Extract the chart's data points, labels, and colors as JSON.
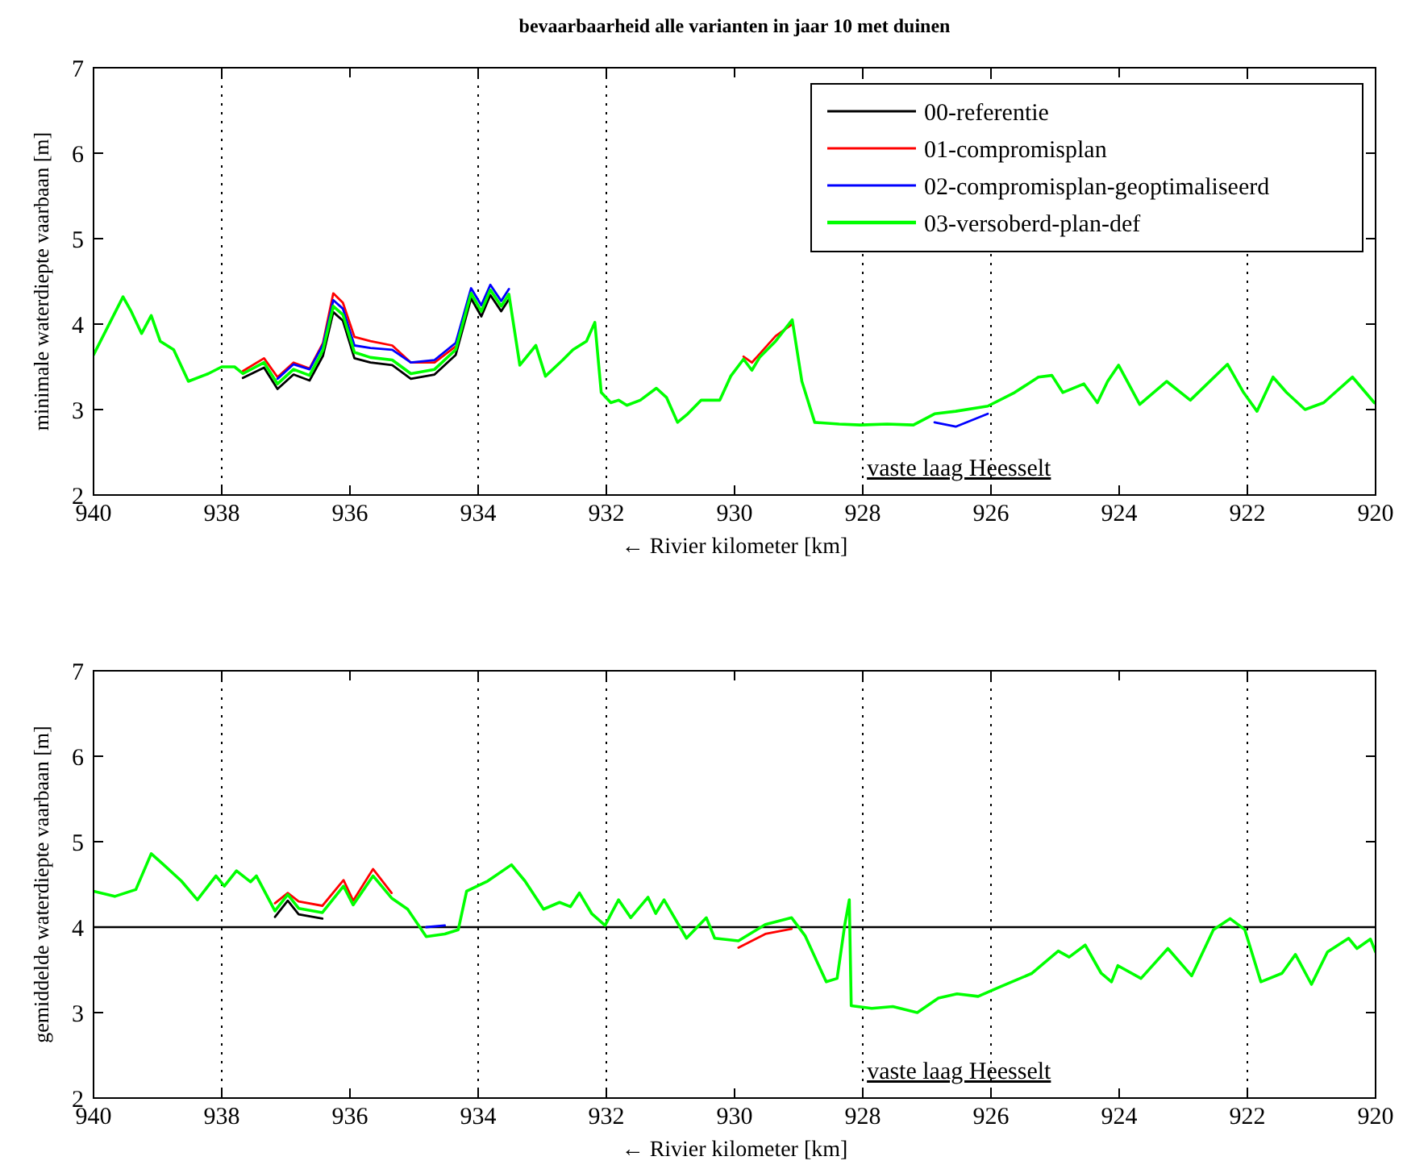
{
  "chart_data": [
    {
      "type": "line",
      "title": "bevaarbaarheid alle varianten in jaar 10 met duinen",
      "xlabel": "← Rivier kilometer [km]",
      "ylabel": "minimale waterdiepte vaarbaan [m]",
      "xlim": [
        940,
        920
      ],
      "ylim": [
        2,
        7
      ],
      "xticks": [
        940,
        938,
        936,
        934,
        932,
        930,
        928,
        926,
        924,
        922,
        920
      ],
      "yticks": [
        2,
        3,
        4,
        5,
        6,
        7
      ],
      "legend": "top right",
      "x": [
        940,
        939.54,
        939.42,
        939.25,
        939.1,
        938.96,
        938.75,
        938.52,
        938.21,
        938,
        937.8,
        937.67,
        937.34,
        937.13,
        936.88,
        936.63,
        936.42,
        936.26,
        936.11,
        935.93,
        935.68,
        935.34,
        935.05,
        934.68,
        934.35,
        934.11,
        933.95,
        933.81,
        933.64,
        933.52,
        933.35,
        933.1,
        932.95,
        932.68,
        932.52,
        932.31,
        932.18,
        932.08,
        931.93,
        931.81,
        931.68,
        931.47,
        931.22,
        931.06,
        930.89,
        930.73,
        930.52,
        930.23,
        930.06,
        929.86,
        929.73,
        929.61,
        929.36,
        929.1,
        928.95,
        928.75,
        928.37,
        928.04,
        927.62,
        927.21,
        926.88,
        926.55,
        926.05,
        925.63,
        925.26,
        925.05,
        924.88,
        924.55,
        924.34,
        924.18,
        924.01,
        923.68,
        923.26,
        922.89,
        922.31,
        922.06,
        921.85,
        921.6,
        921.39,
        921.1,
        920.81,
        920.36,
        920.02
      ],
      "series": [
        {
          "name": "00-referentie",
          "color": "#000000",
          "values": [
            null,
            null,
            null,
            null,
            null,
            null,
            null,
            null,
            null,
            null,
            null,
            3.37,
            3.49,
            3.24,
            3.41,
            3.34,
            3.63,
            4.14,
            4.04,
            3.6,
            3.55,
            3.52,
            3.36,
            3.41,
            3.64,
            4.3,
            4.09,
            4.34,
            4.15,
            4.29,
            null,
            null,
            null,
            null,
            null,
            null,
            null,
            null,
            null,
            null,
            null,
            null,
            null,
            null,
            null,
            null,
            null,
            null,
            null,
            null,
            null,
            null,
            null,
            null,
            null,
            null,
            null,
            null,
            null,
            null,
            null,
            null,
            null,
            null,
            null,
            null,
            null,
            null,
            null,
            null,
            null,
            null,
            null,
            null,
            null,
            null,
            null,
            null,
            null,
            null,
            null,
            null,
            null
          ]
        },
        {
          "name": "01-compromisplan",
          "color": "#ff0000",
          "values": [
            null,
            null,
            null,
            null,
            null,
            null,
            null,
            null,
            null,
            null,
            null,
            3.45,
            3.6,
            3.38,
            3.55,
            3.48,
            3.78,
            4.36,
            4.25,
            3.85,
            3.8,
            3.75,
            3.55,
            3.55,
            3.74,
            null,
            null,
            null,
            null,
            null,
            null,
            null,
            null,
            null,
            null,
            null,
            null,
            null,
            null,
            null,
            null,
            null,
            null,
            null,
            null,
            null,
            null,
            null,
            null,
            3.62,
            3.55,
            3.65,
            3.86,
            4.0,
            null,
            null,
            null,
            null,
            null,
            null,
            null,
            null,
            null,
            null,
            null,
            null,
            null,
            null,
            null,
            null,
            null,
            null,
            null,
            null,
            null,
            null,
            null,
            null,
            null,
            null,
            null,
            null,
            null
          ]
        },
        {
          "name": "02-compromisplan-geoptimaliseerd",
          "color": "#0000ff",
          "values": [
            null,
            null,
            null,
            null,
            null,
            null,
            null,
            null,
            null,
            null,
            null,
            null,
            null,
            3.36,
            3.53,
            3.47,
            3.76,
            4.28,
            4.18,
            3.75,
            3.72,
            3.7,
            3.55,
            3.58,
            3.78,
            4.42,
            4.22,
            4.46,
            4.27,
            4.41,
            null,
            null,
            null,
            null,
            null,
            null,
            null,
            null,
            null,
            null,
            null,
            null,
            null,
            null,
            null,
            null,
            null,
            null,
            null,
            null,
            null,
            null,
            null,
            null,
            null,
            null,
            null,
            null,
            null,
            null,
            2.85,
            2.8,
            2.95,
            null,
            null,
            null,
            null,
            null,
            null,
            null,
            null,
            null,
            null,
            null,
            null,
            null,
            null,
            null,
            null,
            null,
            null,
            null,
            null
          ]
        },
        {
          "name": "03-versoberd-plan-def",
          "color": "#00ff00",
          "values": [
            3.64,
            4.32,
            4.16,
            3.89,
            4.1,
            3.8,
            3.7,
            3.33,
            3.42,
            3.5,
            3.5,
            3.42,
            3.55,
            3.3,
            3.47,
            3.4,
            3.7,
            4.21,
            4.11,
            3.67,
            3.61,
            3.58,
            3.42,
            3.47,
            3.7,
            4.36,
            4.15,
            4.4,
            4.21,
            4.35,
            3.52,
            3.75,
            3.39,
            3.58,
            3.7,
            3.8,
            4.02,
            3.2,
            3.08,
            3.11,
            3.05,
            3.11,
            3.25,
            3.14,
            2.85,
            2.95,
            3.11,
            3.11,
            3.39,
            3.59,
            3.46,
            3.61,
            3.8,
            4.05,
            3.33,
            2.85,
            2.83,
            2.82,
            2.83,
            2.82,
            2.95,
            2.98,
            3.04,
            3.2,
            3.38,
            3.4,
            3.2,
            3.3,
            3.08,
            3.33,
            3.52,
            3.06,
            3.33,
            3.11,
            3.53,
            3.2,
            2.98,
            3.38,
            3.2,
            3.0,
            3.08,
            3.38,
            3.08
          ]
        }
      ],
      "ref_lines": [
        {
          "axis": "x",
          "value": 938,
          "color": "#000000",
          "line_style": "dotted"
        },
        {
          "axis": "x",
          "value": 934,
          "color": "#000000",
          "line_style": "dotted"
        },
        {
          "axis": "x",
          "value": 932,
          "color": "#000000",
          "line_style": "dotted"
        },
        {
          "axis": "x",
          "value": 928,
          "color": "#000000",
          "line_style": "dotted"
        },
        {
          "axis": "x",
          "value": 926,
          "color": "#000000",
          "line_style": "dotted"
        },
        {
          "axis": "x",
          "value": 922,
          "color": "#000000",
          "line_style": "dotted"
        }
      ],
      "annotations": [
        "vaste laag Heesselt"
      ]
    },
    {
      "type": "line",
      "xlabel": "← Rivier kilometer [km]",
      "ylabel": "gemiddelde waterdiepte vaarbaan [m]",
      "xlim": [
        940,
        920
      ],
      "ylim": [
        2,
        7
      ],
      "xticks": [
        940,
        938,
        936,
        934,
        932,
        930,
        928,
        926,
        924,
        922,
        920
      ],
      "yticks": [
        2,
        3,
        4,
        5,
        6,
        7
      ],
      "x": [
        940,
        939.67,
        939.34,
        939.1,
        938.92,
        938.63,
        938.38,
        938.09,
        937.96,
        937.77,
        937.55,
        937.46,
        937.17,
        936.97,
        936.8,
        936.43,
        936.1,
        935.95,
        935.64,
        935.35,
        935.1,
        934.81,
        934.52,
        934.31,
        934.18,
        933.85,
        933.48,
        933.27,
        932.98,
        932.73,
        932.56,
        932.42,
        932.23,
        932.02,
        931.81,
        931.62,
        931.35,
        931.23,
        931.1,
        930.75,
        930.44,
        930.31,
        929.94,
        929.52,
        929.11,
        928.9,
        928.57,
        928.4,
        928.28,
        928.21,
        928.18,
        927.86,
        927.53,
        927.15,
        926.82,
        926.53,
        926.2,
        925.86,
        925.36,
        924.95,
        924.78,
        924.53,
        924.28,
        924.12,
        924.02,
        923.66,
        923.24,
        922.87,
        922.53,
        922.27,
        922.04,
        921.79,
        921.46,
        921.25,
        921,
        920.75,
        920.42,
        920.29,
        920.08,
        920
      ],
      "series": [
        {
          "color": "#000000",
          "values": [
            null,
            null,
            null,
            null,
            null,
            null,
            null,
            null,
            null,
            null,
            null,
            null,
            4.12,
            4.31,
            4.15,
            4.1,
            null,
            null,
            null,
            null,
            null,
            null,
            null,
            null,
            null,
            null,
            null,
            null,
            null,
            null,
            null,
            null,
            null,
            null,
            null,
            null,
            null,
            null,
            null,
            null,
            null,
            null,
            null,
            null,
            null,
            null,
            null,
            null,
            null,
            null,
            null,
            null,
            null,
            null,
            null,
            null,
            null,
            null,
            null,
            null,
            null,
            null,
            null,
            null,
            null,
            null,
            null,
            null,
            null,
            null,
            null,
            null,
            null,
            null,
            null,
            null,
            null,
            null,
            null,
            null
          ]
        },
        {
          "color": "#ff0000",
          "values": [
            null,
            null,
            null,
            null,
            null,
            null,
            null,
            null,
            null,
            null,
            null,
            null,
            4.28,
            4.4,
            4.3,
            4.25,
            4.55,
            4.31,
            4.68,
            4.4,
            null,
            null,
            null,
            null,
            null,
            null,
            null,
            null,
            null,
            null,
            null,
            null,
            null,
            null,
            null,
            null,
            null,
            null,
            null,
            null,
            null,
            null,
            3.76,
            3.92,
            3.98,
            null,
            null,
            null,
            null,
            null,
            null,
            null,
            null,
            null,
            null,
            null,
            null,
            null,
            null,
            null,
            null,
            null,
            null,
            null,
            null,
            null,
            null,
            null,
            null,
            null,
            null,
            null,
            null,
            null,
            null,
            null,
            null,
            null,
            null,
            null
          ]
        },
        {
          "color": "#0000ff",
          "values": [
            null,
            null,
            null,
            null,
            null,
            null,
            null,
            null,
            null,
            null,
            null,
            null,
            null,
            null,
            null,
            null,
            null,
            null,
            null,
            null,
            null,
            4.0,
            4.02,
            null,
            null,
            null,
            null,
            null,
            null,
            null,
            null,
            null,
            null,
            null,
            null,
            null,
            null,
            null,
            null,
            null,
            null,
            null,
            null,
            null,
            null,
            null,
            null,
            null,
            null,
            null,
            null,
            null,
            null,
            null,
            null,
            null,
            null,
            null,
            null,
            null,
            null,
            null,
            null,
            null,
            null,
            null,
            null,
            null,
            null,
            null,
            null,
            null,
            null,
            null,
            null,
            null,
            null,
            null,
            null,
            null
          ]
        },
        {
          "color": "#00ff00",
          "values": [
            4.42,
            4.36,
            4.44,
            4.86,
            4.74,
            4.54,
            4.32,
            4.6,
            4.48,
            4.66,
            4.53,
            4.6,
            4.19,
            4.38,
            4.22,
            4.17,
            4.48,
            4.26,
            4.6,
            4.34,
            4.21,
            3.89,
            3.92,
            3.97,
            4.42,
            4.54,
            4.73,
            4.54,
            4.21,
            4.29,
            4.24,
            4.4,
            4.16,
            4.02,
            4.32,
            4.11,
            4.35,
            4.16,
            4.32,
            3.87,
            4.11,
            3.87,
            3.84,
            4.03,
            4.11,
            3.9,
            3.36,
            3.4,
            4.03,
            4.32,
            3.08,
            3.05,
            3.07,
            3.0,
            3.17,
            3.22,
            3.19,
            3.3,
            3.46,
            3.72,
            3.65,
            3.79,
            3.46,
            3.36,
            3.55,
            3.4,
            3.75,
            3.43,
            3.97,
            4.1,
            3.97,
            3.36,
            3.46,
            3.68,
            3.33,
            3.71,
            3.87,
            3.75,
            3.86,
            3.71
          ]
        }
      ],
      "ref_lines": [
        {
          "axis": "x",
          "value": 938,
          "color": "#000000",
          "line_style": "dotted"
        },
        {
          "axis": "x",
          "value": 934,
          "color": "#000000",
          "line_style": "dotted"
        },
        {
          "axis": "x",
          "value": 932,
          "color": "#000000",
          "line_style": "dotted"
        },
        {
          "axis": "x",
          "value": 928,
          "color": "#000000",
          "line_style": "dotted"
        },
        {
          "axis": "x",
          "value": 926,
          "color": "#000000",
          "line_style": "dotted"
        },
        {
          "axis": "x",
          "value": 922,
          "color": "#000000",
          "line_style": "dotted"
        },
        {
          "axis": "y",
          "value": 4,
          "color": "#000000",
          "line_style": "solid"
        }
      ],
      "annotations": [
        "vaste laag Heesselt"
      ]
    }
  ]
}
